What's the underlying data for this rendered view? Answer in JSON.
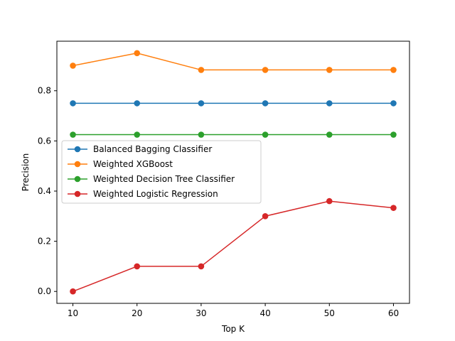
{
  "chart_data": {
    "type": "line",
    "title": "",
    "xlabel": "Top K",
    "ylabel": "Precision",
    "x": [
      10,
      20,
      30,
      40,
      50,
      60
    ],
    "xticks": [
      "10",
      "20",
      "30",
      "40",
      "50",
      "60"
    ],
    "yticks": [
      "0.0",
      "0.2",
      "0.4",
      "0.6",
      "0.8"
    ],
    "xlim": [
      7.5,
      62.5
    ],
    "ylim": [
      -0.0475,
      0.9975
    ],
    "grid": false,
    "legend_position": "center-left",
    "series": [
      {
        "name": "Balanced Bagging Classifier",
        "color": "#1f77b4",
        "values": [
          0.75,
          0.75,
          0.75,
          0.75,
          0.75,
          0.75
        ]
      },
      {
        "name": "Weighted XGBoost",
        "color": "#ff7f0e",
        "values": [
          0.9,
          0.95,
          0.883,
          0.883,
          0.883,
          0.883
        ]
      },
      {
        "name": "Weighted Decision Tree Classifier",
        "color": "#2ca02c",
        "values": [
          0.625,
          0.625,
          0.625,
          0.625,
          0.625,
          0.625
        ]
      },
      {
        "name": "Weighted Logistic Regression",
        "color": "#d62728",
        "values": [
          0.0,
          0.1,
          0.1,
          0.3,
          0.36,
          0.333
        ]
      }
    ]
  }
}
